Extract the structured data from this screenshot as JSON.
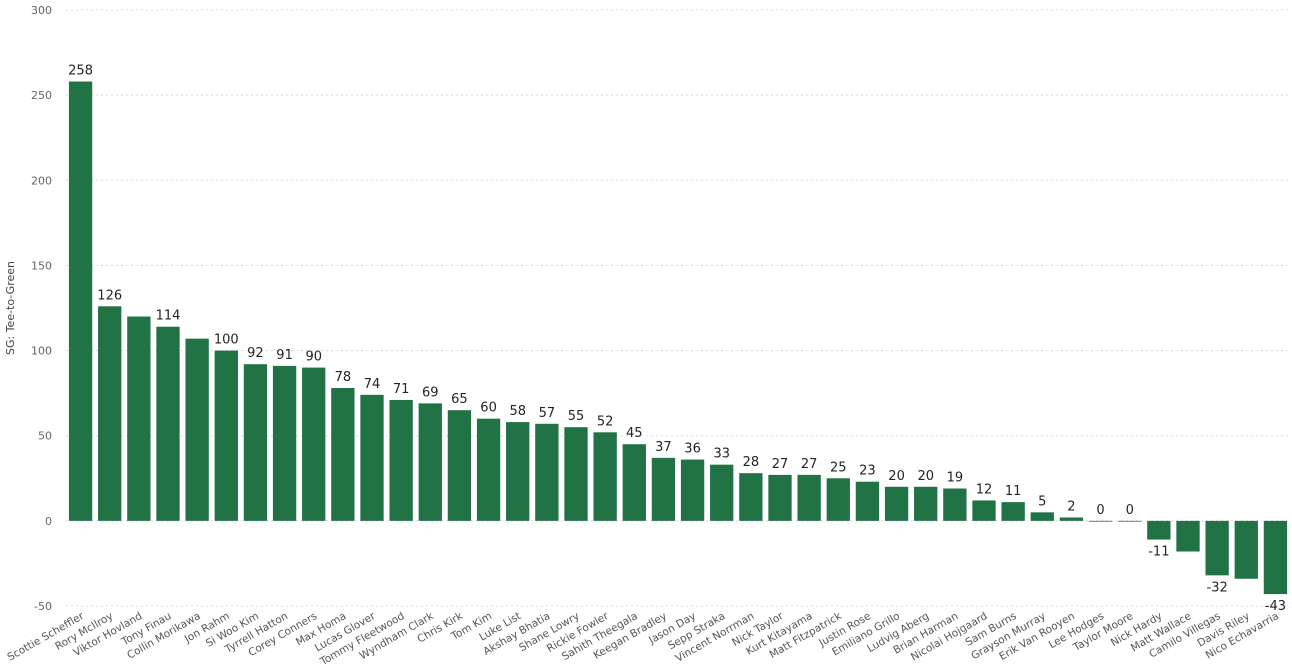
{
  "chart_data": {
    "type": "bar",
    "ylabel": "SG: Tee-to-Green",
    "ylim": [
      -50,
      300
    ],
    "yticks": [
      -50,
      0,
      50,
      100,
      150,
      200,
      250,
      300
    ],
    "grid": true,
    "bar_color": "#217346",
    "categories": [
      "Scottie Scheffler",
      "Rory McIlroy",
      "Viktor Hovland",
      "Tony Finau",
      "Collin Morikawa",
      "Jon Rahm",
      "Si Woo Kim",
      "Tyrrell Hatton",
      "Corey Conners",
      "Max Homa",
      "Lucas Glover",
      "Tommy Fleetwood",
      "Wyndham Clark",
      "Chris Kirk",
      "Tom Kim",
      "Luke List",
      "Akshay Bhatia",
      "Shane Lowry",
      "Rickie Fowler",
      "Sahith Theegala",
      "Keegan Bradley",
      "Jason Day",
      "Sepp Straka",
      "Vincent Norrman",
      "Nick Taylor",
      "Kurt Kitayama",
      "Matt Fitzpatrick",
      "Justin Rose",
      "Emiliano Grillo",
      "Ludvig Aberg",
      "Brian Harman",
      "Nicolai Hojgaard",
      "Sam Burns",
      "Grayson Murray",
      "Erik Van Rooyen",
      "Lee Hodges",
      "Taylor Moore",
      "Nick Hardy",
      "Matt Wallace",
      "Camilo Villegas",
      "Davis Riley",
      "Nico Echavarria"
    ],
    "values": [
      258,
      126,
      120,
      114,
      107,
      100,
      92,
      91,
      90,
      78,
      74,
      71,
      69,
      65,
      60,
      58,
      57,
      55,
      52,
      45,
      37,
      36,
      33,
      28,
      27,
      27,
      25,
      23,
      20,
      20,
      19,
      12,
      11,
      5,
      2,
      0,
      0,
      -11,
      -18,
      -32,
      -34,
      -43
    ],
    "labels": [
      "258",
      "126",
      "",
      "114",
      "",
      "100",
      "92",
      "91",
      "90",
      "78",
      "74",
      "71",
      "69",
      "65",
      "60",
      "58",
      "57",
      "55",
      "52",
      "45",
      "37",
      "36",
      "33",
      "28",
      "27",
      "27",
      "25",
      "23",
      "20",
      "20",
      "19",
      "12",
      "11",
      "5",
      "2",
      "0",
      "0",
      "-11",
      "",
      "-32",
      "",
      "-43"
    ]
  }
}
